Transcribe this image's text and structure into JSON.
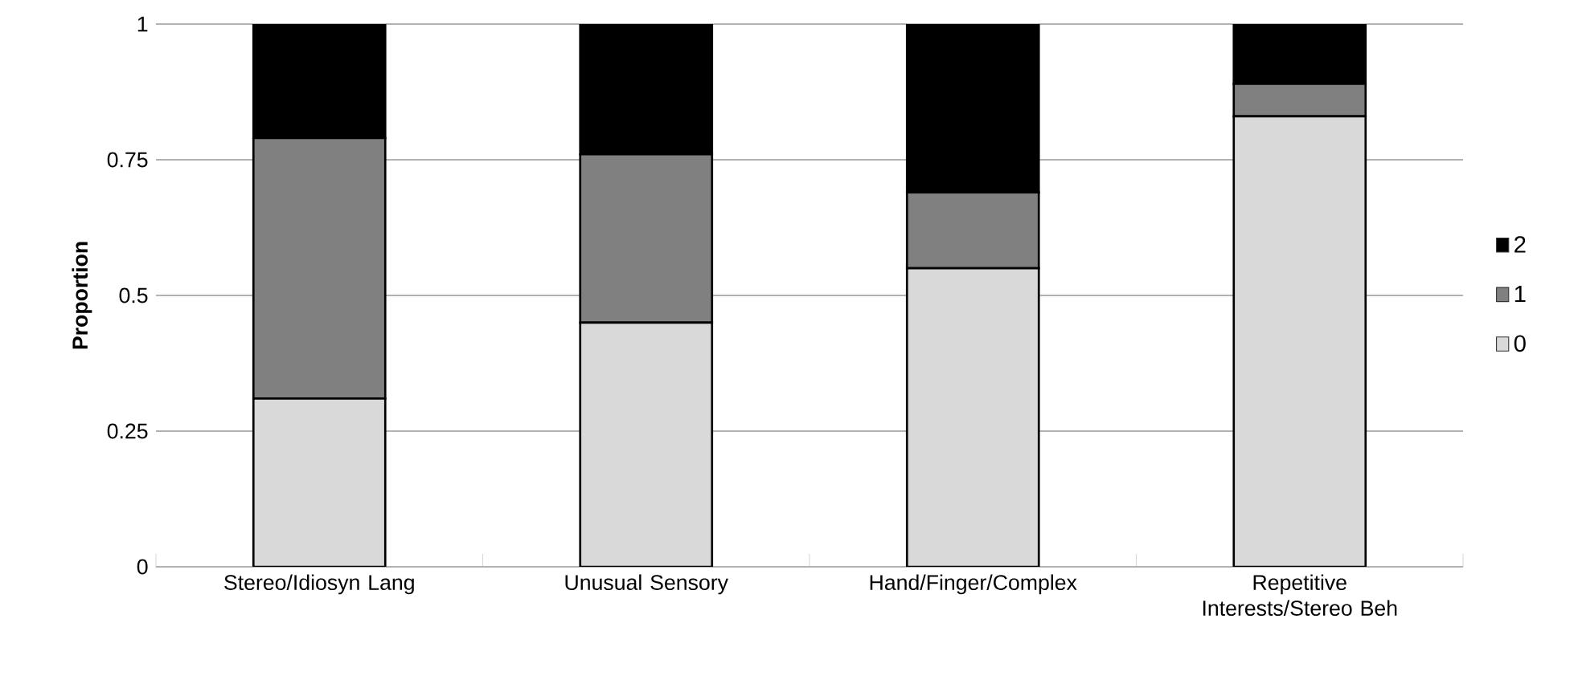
{
  "chart_data": {
    "type": "bar",
    "stacked": true,
    "ylabel": "Proportion",
    "categories": [
      "Stereo/Idiosyn Lang",
      "Unusual Sensory",
      "Hand/Finger/Complex",
      "Repetitive Interests/Stereo Beh"
    ],
    "series": [
      {
        "name": "0",
        "color": "#d9d9d9",
        "values": [
          0.31,
          0.45,
          0.55,
          0.83
        ]
      },
      {
        "name": "1",
        "color": "#808080",
        "values": [
          0.48,
          0.31,
          0.14,
          0.06
        ]
      },
      {
        "name": "2",
        "color": "#000000",
        "values": [
          0.21,
          0.24,
          0.31,
          0.11
        ]
      }
    ],
    "ylim": [
      0,
      1
    ],
    "yticks": [
      0,
      0.25,
      0.5,
      0.75,
      1
    ],
    "grid": "y",
    "legend": "right"
  }
}
